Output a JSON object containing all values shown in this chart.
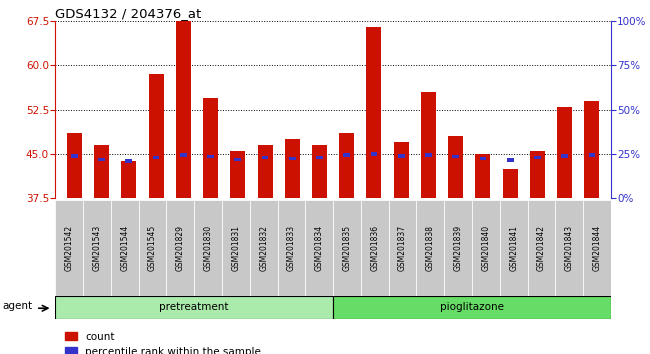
{
  "title": "GDS4132 / 204376_at",
  "samples": [
    "GSM201542",
    "GSM201543",
    "GSM201544",
    "GSM201545",
    "GSM201829",
    "GSM201830",
    "GSM201831",
    "GSM201832",
    "GSM201833",
    "GSM201834",
    "GSM201835",
    "GSM201836",
    "GSM201837",
    "GSM201838",
    "GSM201839",
    "GSM201840",
    "GSM201841",
    "GSM201842",
    "GSM201843",
    "GSM201844"
  ],
  "count_values": [
    48.5,
    46.5,
    43.8,
    58.5,
    67.5,
    54.5,
    45.5,
    46.5,
    47.5,
    46.5,
    48.5,
    66.5,
    47.0,
    55.5,
    48.0,
    45.0,
    42.5,
    45.5,
    53.0,
    54.0
  ],
  "percentile_values": [
    24.0,
    22.0,
    21.0,
    23.0,
    24.5,
    23.5,
    22.0,
    23.0,
    22.5,
    23.0,
    24.5,
    25.0,
    24.0,
    24.5,
    23.5,
    22.5,
    21.5,
    23.0,
    24.0,
    24.5
  ],
  "group_labels": [
    "pretreatment",
    "pioglitazone"
  ],
  "group_split": 10,
  "group_color_1": "#aaeaaa",
  "group_color_2": "#66dd66",
  "ylim_left": [
    37.5,
    67.5
  ],
  "ylim_right": [
    0,
    100
  ],
  "yticks_left": [
    37.5,
    45.0,
    52.5,
    60.0,
    67.5
  ],
  "yticks_right": [
    0,
    25,
    50,
    75,
    100
  ],
  "bar_color": "#cc1100",
  "percentile_color": "#3333cc",
  "tick_bg_color": "#c8c8c8",
  "agent_label": "agent",
  "legend_count": "count",
  "legend_percentile": "percentile rank within the sample",
  "bar_width": 0.55,
  "base_value": 37.5
}
